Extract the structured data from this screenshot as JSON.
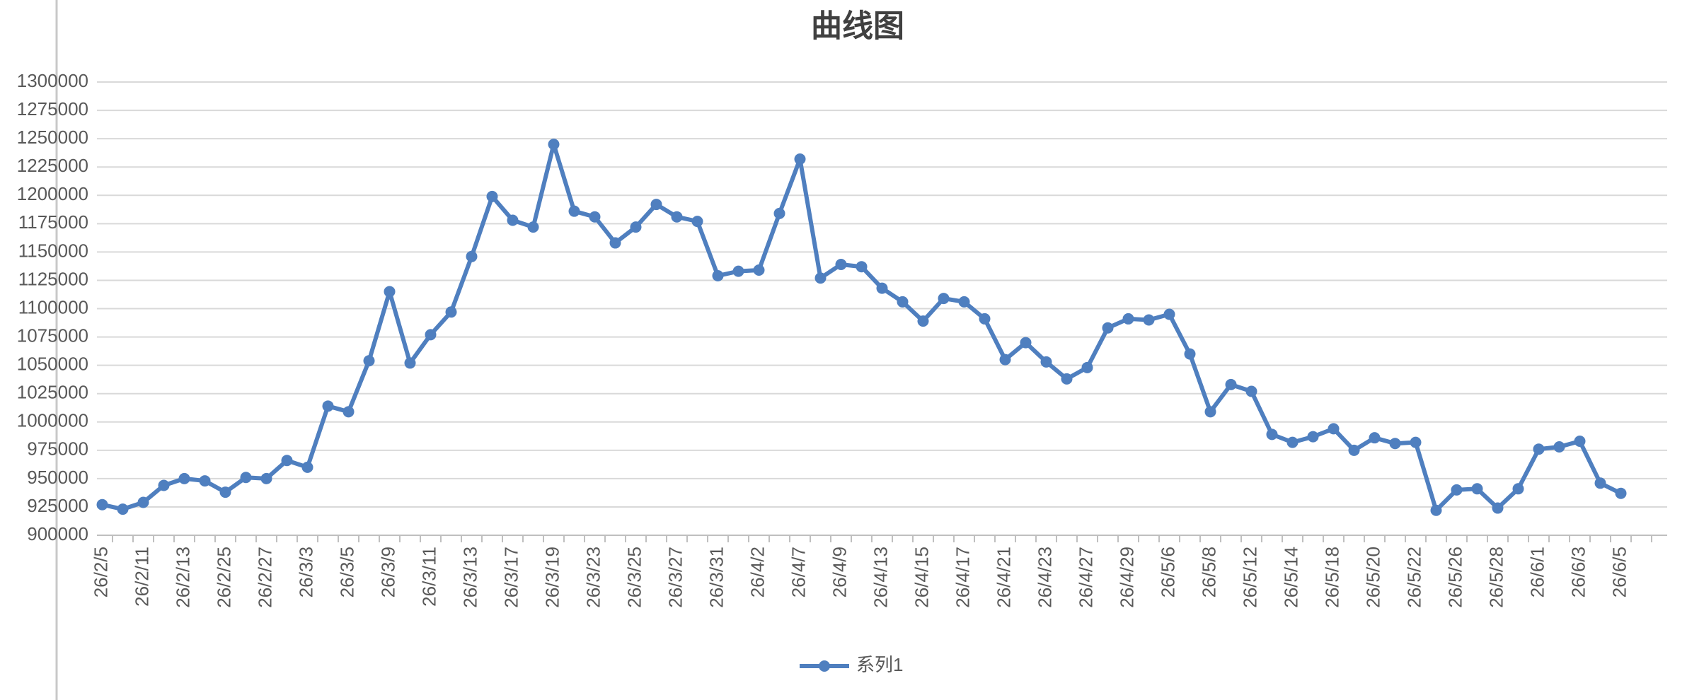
{
  "chart_data": {
    "type": "line",
    "title": "曲线图",
    "categories": [
      "26/2/5",
      null,
      "26/2/11",
      null,
      "26/2/13",
      null,
      "26/2/25",
      null,
      "26/2/27",
      null,
      "26/3/3",
      null,
      "26/3/5",
      null,
      "26/3/9",
      null,
      "26/3/11",
      null,
      "26/3/13",
      null,
      "26/3/17",
      null,
      "26/3/19",
      null,
      "26/3/23",
      null,
      "26/3/25",
      null,
      "26/3/27",
      null,
      "26/3/31",
      null,
      "26/4/2",
      null,
      "26/4/7",
      null,
      "26/4/9",
      null,
      "26/4/13",
      null,
      "26/4/15",
      null,
      "26/4/17",
      null,
      "26/4/21",
      null,
      "26/4/23",
      null,
      "26/4/27",
      null,
      "26/4/29",
      null,
      "26/5/6",
      null,
      "26/5/8",
      null,
      "26/5/12",
      null,
      "26/5/14",
      null,
      "26/5/18",
      null,
      "26/5/20",
      null,
      "26/5/22",
      null,
      "26/5/26",
      null,
      "26/5/28",
      null,
      "26/6/1",
      null,
      "26/6/3",
      null,
      "26/6/5"
    ],
    "series": [
      {
        "name": "系列1",
        "color": "#4f7fbf",
        "values": [
          927000,
          923000,
          929000,
          944000,
          950000,
          948000,
          938000,
          951000,
          950000,
          966000,
          960000,
          1014000,
          1009000,
          1054000,
          1115000,
          1052000,
          1077000,
          1097000,
          1146000,
          1199000,
          1178000,
          1172000,
          1245000,
          1186000,
          1181000,
          1158000,
          1172000,
          1192000,
          1181000,
          1177000,
          1129000,
          1133000,
          1134000,
          1184000,
          1232000,
          1127000,
          1139000,
          1137000,
          1118000,
          1106000,
          1089000,
          1109000,
          1106000,
          1091000,
          1055000,
          1070000,
          1053000,
          1038000,
          1048000,
          1083000,
          1091000,
          1090000,
          1095000,
          1060000,
          1009000,
          1033000,
          1027000,
          989000,
          982000,
          987000,
          994000,
          975000,
          986000,
          981000,
          982000,
          922000,
          940000,
          941000,
          924000,
          941000,
          976000,
          978000,
          983000,
          946000,
          937000
        ]
      }
    ],
    "ylim": [
      900000,
      1300000
    ],
    "yticks": [
      900000,
      925000,
      950000,
      975000,
      1000000,
      1025000,
      1050000,
      1075000,
      1100000,
      1125000,
      1150000,
      1175000,
      1200000,
      1225000,
      1250000,
      1275000,
      1300000
    ],
    "grid": true,
    "legend": "bottom"
  }
}
